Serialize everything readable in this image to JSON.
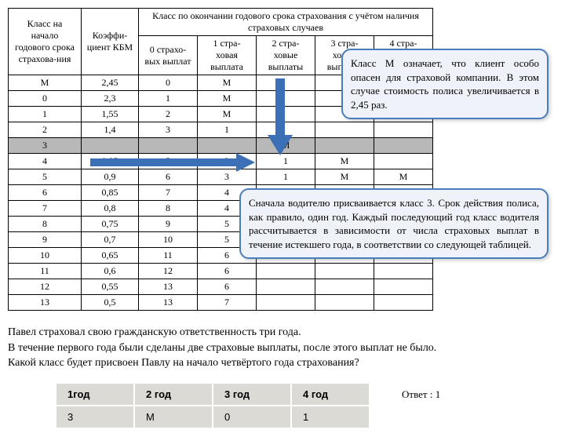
{
  "mainTable": {
    "header": {
      "col1": "Класс на начало годового срока страхова-ния",
      "col2": "Коэффи-циент КБМ",
      "groupHeader": "Класс по окончании годового срока страхования с учётом наличия страховых случаев",
      "sub": [
        "0 страхо-вых выплат",
        "1 стра-ховая выплата",
        "2 стра-ховые выплаты",
        "3 стра-ховые выплаты",
        "4 стра-ховые выплаты"
      ]
    },
    "rows": [
      [
        "М",
        "2,45",
        "0",
        "М",
        "",
        "",
        ""
      ],
      [
        "0",
        "2,3",
        "1",
        "М",
        "",
        "",
        ""
      ],
      [
        "1",
        "1,55",
        "2",
        "М",
        "",
        "",
        ""
      ],
      [
        "2",
        "1,4",
        "3",
        "1",
        "",
        "",
        ""
      ],
      [
        "3",
        "",
        "",
        "",
        "М",
        "",
        ""
      ],
      [
        "4",
        "0,95",
        "5",
        "2",
        "1",
        "М",
        ""
      ],
      [
        "5",
        "0,9",
        "6",
        "3",
        "1",
        "М",
        "М"
      ],
      [
        "6",
        "0,85",
        "7",
        "4",
        "",
        "",
        ""
      ],
      [
        "7",
        "0,8",
        "8",
        "4",
        "",
        "",
        ""
      ],
      [
        "8",
        "0,75",
        "9",
        "5",
        "",
        "",
        ""
      ],
      [
        "9",
        "0,7",
        "10",
        "5",
        "",
        "",
        ""
      ],
      [
        "10",
        "0,65",
        "11",
        "6",
        "",
        "",
        ""
      ],
      [
        "11",
        "0,6",
        "12",
        "6",
        "",
        "",
        ""
      ],
      [
        "12",
        "0,55",
        "13",
        "6",
        "",
        "",
        ""
      ],
      [
        "13",
        "0,5",
        "13",
        "7",
        "",
        "",
        ""
      ]
    ],
    "highlightRowIndex": 4
  },
  "callout1": "Класс М означает, что клиент особо опасен для страховой компании. В этом случае стоимость полиса увеличивается в 2,45 раз.",
  "callout2": "Сначала водителю присваивается класс 3. Срок действия полиса, как правило, один год. Каждый последующий год класс водителя рассчитывается в зависимости от числа страховых выплат в течение истекшего года, в соответствии со следующей таблицей.",
  "question": {
    "l1": "Павел страховал свою гражданскую ответственность три года.",
    "l2": "В течение первого года были сделаны две страховые выплаты, после этого выплат не было.",
    "l3": "Какой класс будет присвоен Павлу на начало четвёртого года страхования?"
  },
  "answerTable": {
    "headers": [
      "1год",
      "2 год",
      "3 год",
      "4 год"
    ],
    "values": [
      "3",
      "М",
      "0",
      "1"
    ]
  },
  "answer": "Ответ : 1",
  "arrowColor": "#3b6fb6"
}
